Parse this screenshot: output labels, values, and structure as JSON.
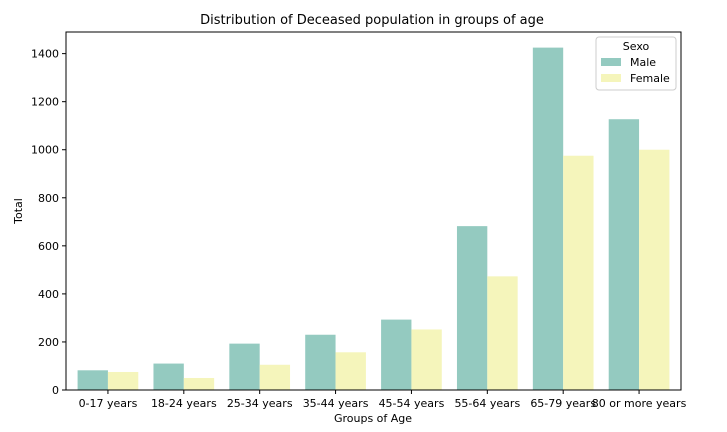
{
  "chart_data": {
    "type": "bar",
    "title": "Distribution of Deceased population in groups of age",
    "xlabel": "Groups of Age",
    "ylabel": "Total",
    "categories": [
      "0-17 years",
      "18-24 years",
      "25-34 years",
      "35-44 years",
      "45-54 years",
      "55-64 years",
      "65-79 years",
      "80 or more years"
    ],
    "series": [
      {
        "name": "Male",
        "color": "#94cac0",
        "values": [
          82,
          110,
          193,
          230,
          293,
          682,
          1425,
          1127
        ]
      },
      {
        "name": "Female",
        "color": "#f5f5bb",
        "values": [
          75,
          50,
          105,
          157,
          252,
          473,
          975,
          1000
        ]
      }
    ],
    "ylim": [
      0,
      1490
    ],
    "yticks": [
      0,
      200,
      400,
      600,
      800,
      1000,
      1200,
      1400
    ],
    "grid": false,
    "legend": {
      "title": "Sexo",
      "placement": "top-right"
    }
  }
}
